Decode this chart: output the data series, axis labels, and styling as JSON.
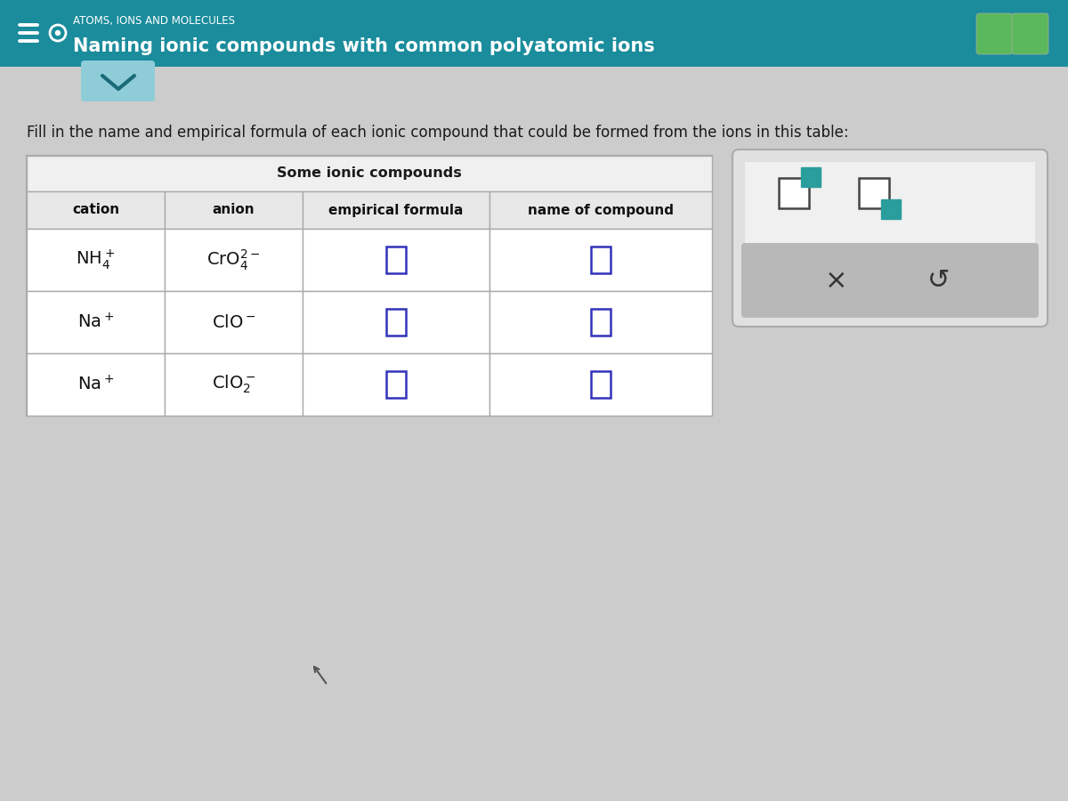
{
  "header_bg_color": "#1a8c9c",
  "header_text_color": "#ffffff",
  "page_bg_color": "#cccccc",
  "table_bg_color": "#ffffff",
  "header_label_color": "#2c2c2c",
  "title_small": "ATOMS, IONS AND MOLECULES",
  "title_main": "Naming ionic compounds with common polyatomic ions",
  "instruction": "Fill in the name and empirical formula of each ionic compound that could be formed from the ions in this table:",
  "col_headers": [
    "cation",
    "anion",
    "empirical formula",
    "name of compound"
  ],
  "table_title": "Some ionic compounds",
  "input_box_color": "#3333bb",
  "teal_color": "#2a9d9d",
  "toolbar_bg": "#e0e0e0",
  "gray_bar_color": "#b8b8b8"
}
